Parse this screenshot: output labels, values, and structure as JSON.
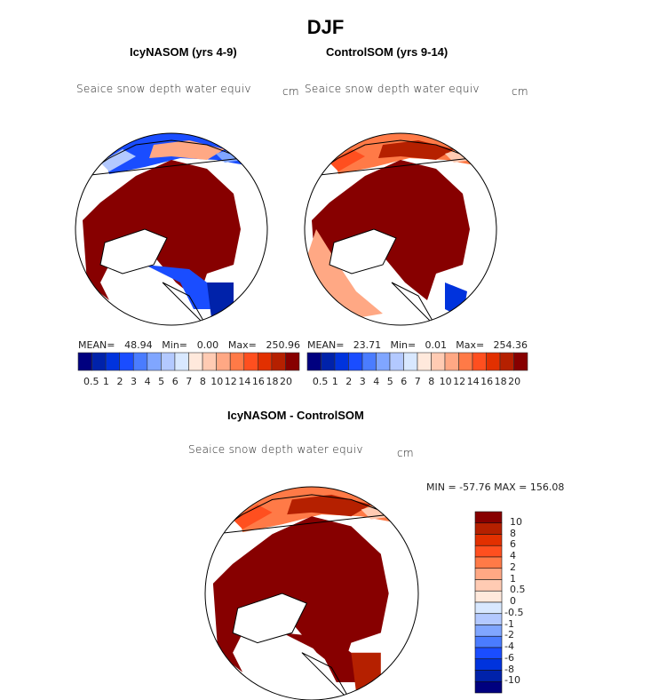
{
  "figure": {
    "title": "DJF"
  },
  "panels": [
    {
      "title": "IcyNASOM (yrs 4-9)",
      "variable": "Seaice snow depth water equiv",
      "units": "cm",
      "stats": {
        "mean_label": "MEAN=",
        "mean": "48.94",
        "min_label": "Min=",
        "min": "0.00",
        "max_label": "Max=",
        "max": "250.96"
      }
    },
    {
      "title": "ControlSOM (yrs 9-14)",
      "variable": "Seaice snow depth water equiv",
      "units": "cm",
      "stats": {
        "mean_label": "MEAN=",
        "mean": "23.71",
        "min_label": "Min=",
        "min": "0.01",
        "max_label": "Max=",
        "max": "254.36"
      }
    },
    {
      "title": "IcyNASOM - ControlSOM",
      "variable": "Seaice snow depth water equiv",
      "units": "cm",
      "stats": {
        "text": "MIN = -57.76 MAX = 156.08"
      }
    }
  ],
  "colorbar_levels": [
    "0.5",
    "1",
    "2",
    "3",
    "4",
    "5",
    "6",
    "7",
    "8",
    "10",
    "12",
    "14",
    "16",
    "18",
    "20"
  ],
  "diff_colorbar_levels": [
    "10",
    "8",
    "6",
    "4",
    "2",
    "1",
    "0.5",
    "0",
    "-0.5",
    "-1",
    "-2",
    "-4",
    "-6",
    "-8",
    "-10"
  ],
  "colors": [
    "#00007f",
    "#0022aa",
    "#0033dd",
    "#1a4dff",
    "#4a7cff",
    "#80a6ff",
    "#b3c9ff",
    "#d8e8ff",
    "#ffe9dc",
    "#ffcbb3",
    "#ffa884",
    "#ff7a47",
    "#ff4f1f",
    "#e23000",
    "#b52000",
    "#870000"
  ]
}
